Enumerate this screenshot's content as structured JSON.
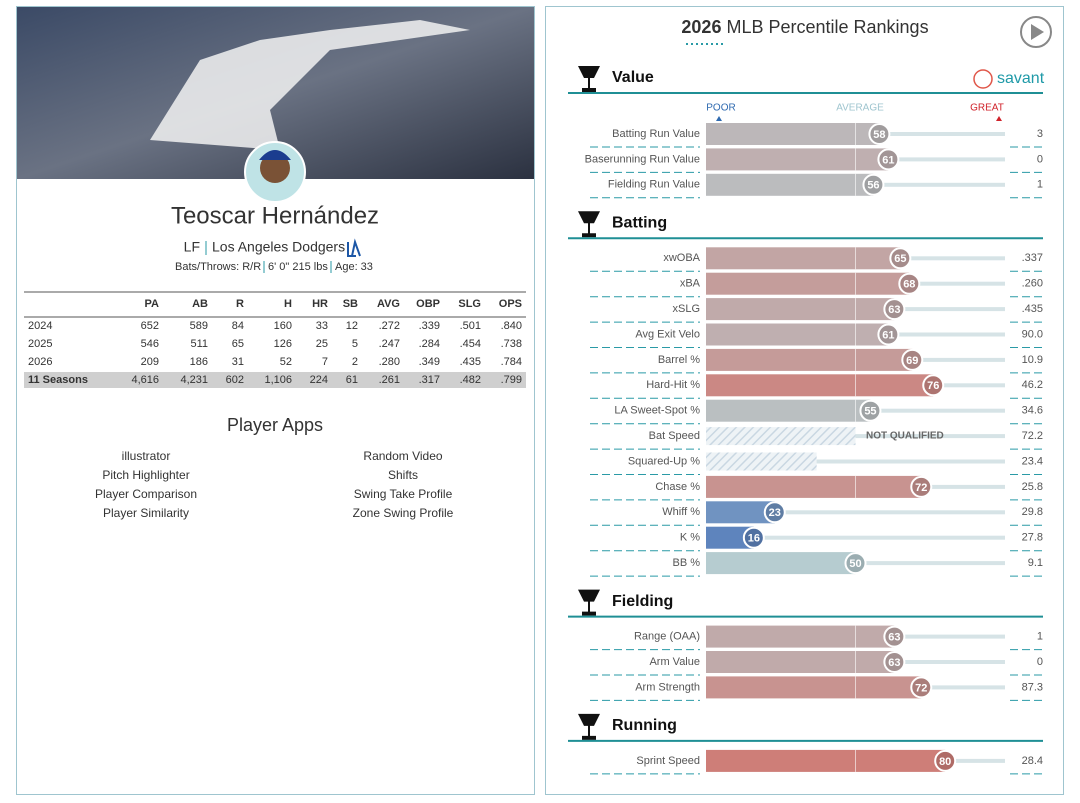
{
  "player": {
    "name": "Teoscar Hernández",
    "position": "LF",
    "team": "Los Angeles Dodgers",
    "bio": [
      "Bats/Throws: R/R",
      "6' 0\" 215 lbs",
      "Age: 33"
    ]
  },
  "stats": {
    "columns": [
      "PA",
      "AB",
      "R",
      "H",
      "HR",
      "SB",
      "AVG",
      "OBP",
      "SLG",
      "OPS"
    ],
    "rows": [
      {
        "label": "2024",
        "values": [
          "652",
          "589",
          "84",
          "160",
          "33",
          "12",
          ".272",
          ".339",
          ".501",
          ".840"
        ]
      },
      {
        "label": "2025",
        "values": [
          "546",
          "511",
          "65",
          "126",
          "25",
          "5",
          ".247",
          ".284",
          ".454",
          ".738"
        ]
      },
      {
        "label": "2026",
        "values": [
          "209",
          "186",
          "31",
          "52",
          "7",
          "2",
          ".280",
          ".349",
          ".435",
          ".784"
        ]
      },
      {
        "label": "11 Seasons",
        "values": [
          "4,616",
          "4,231",
          "602",
          "1,106",
          "224",
          "61",
          ".261",
          ".317",
          ".482",
          ".799"
        ]
      }
    ]
  },
  "apps": {
    "title": "Player Apps",
    "items": [
      "illustrator",
      "Random Video",
      "Pitch Highlighter",
      "Shifts",
      "Player Comparison",
      "Swing Take Profile",
      "Player Similarity",
      "Zone Swing Profile"
    ]
  },
  "rankings": {
    "year": "2026",
    "title": "MLB Percentile Rankings",
    "brand": "savant",
    "scale_labels": [
      "POOR",
      "AVERAGE",
      "GREAT"
    ],
    "sections": [
      {
        "name": "Value",
        "metrics": [
          {
            "name": "Batting Run Value",
            "percentile": 58,
            "value": "3"
          },
          {
            "name": "Baserunning Run Value",
            "percentile": 61,
            "value": "0"
          },
          {
            "name": "Fielding Run Value",
            "percentile": 56,
            "value": "1"
          }
        ]
      },
      {
        "name": "Batting",
        "metrics": [
          {
            "name": "xwOBA",
            "percentile": 65,
            "value": ".337"
          },
          {
            "name": "xBA",
            "percentile": 68,
            "value": ".260"
          },
          {
            "name": "xSLG",
            "percentile": 63,
            "value": ".435"
          },
          {
            "name": "Avg Exit Velo",
            "percentile": 61,
            "value": "90.0"
          },
          {
            "name": "Barrel %",
            "percentile": 69,
            "value": "10.9"
          },
          {
            "name": "Hard-Hit %",
            "percentile": 76,
            "value": "46.2"
          },
          {
            "name": "LA Sweet-Spot %",
            "percentile": 55,
            "value": "34.6"
          },
          {
            "name": "Bat Speed",
            "percentile": null,
            "value": "72.2",
            "note": "NOT QUALIFIED"
          },
          {
            "name": "Squared-Up %",
            "percentile": null,
            "value": "23.4"
          },
          {
            "name": "Chase %",
            "percentile": 72,
            "value": "25.8"
          },
          {
            "name": "Whiff %",
            "percentile": 23,
            "value": "29.8"
          },
          {
            "name": "K %",
            "percentile": 16,
            "value": "27.8"
          },
          {
            "name": "BB %",
            "percentile": 50,
            "value": "9.1"
          }
        ]
      },
      {
        "name": "Fielding",
        "metrics": [
          {
            "name": "Range (OAA)",
            "percentile": 63,
            "value": "1"
          },
          {
            "name": "Arm Value",
            "percentile": 63,
            "value": "0"
          },
          {
            "name": "Arm Strength",
            "percentile": 72,
            "value": "87.3"
          }
        ]
      },
      {
        "name": "Running",
        "metrics": [
          {
            "name": "Sprint Speed",
            "percentile": 80,
            "value": "28.4"
          }
        ]
      }
    ]
  }
}
